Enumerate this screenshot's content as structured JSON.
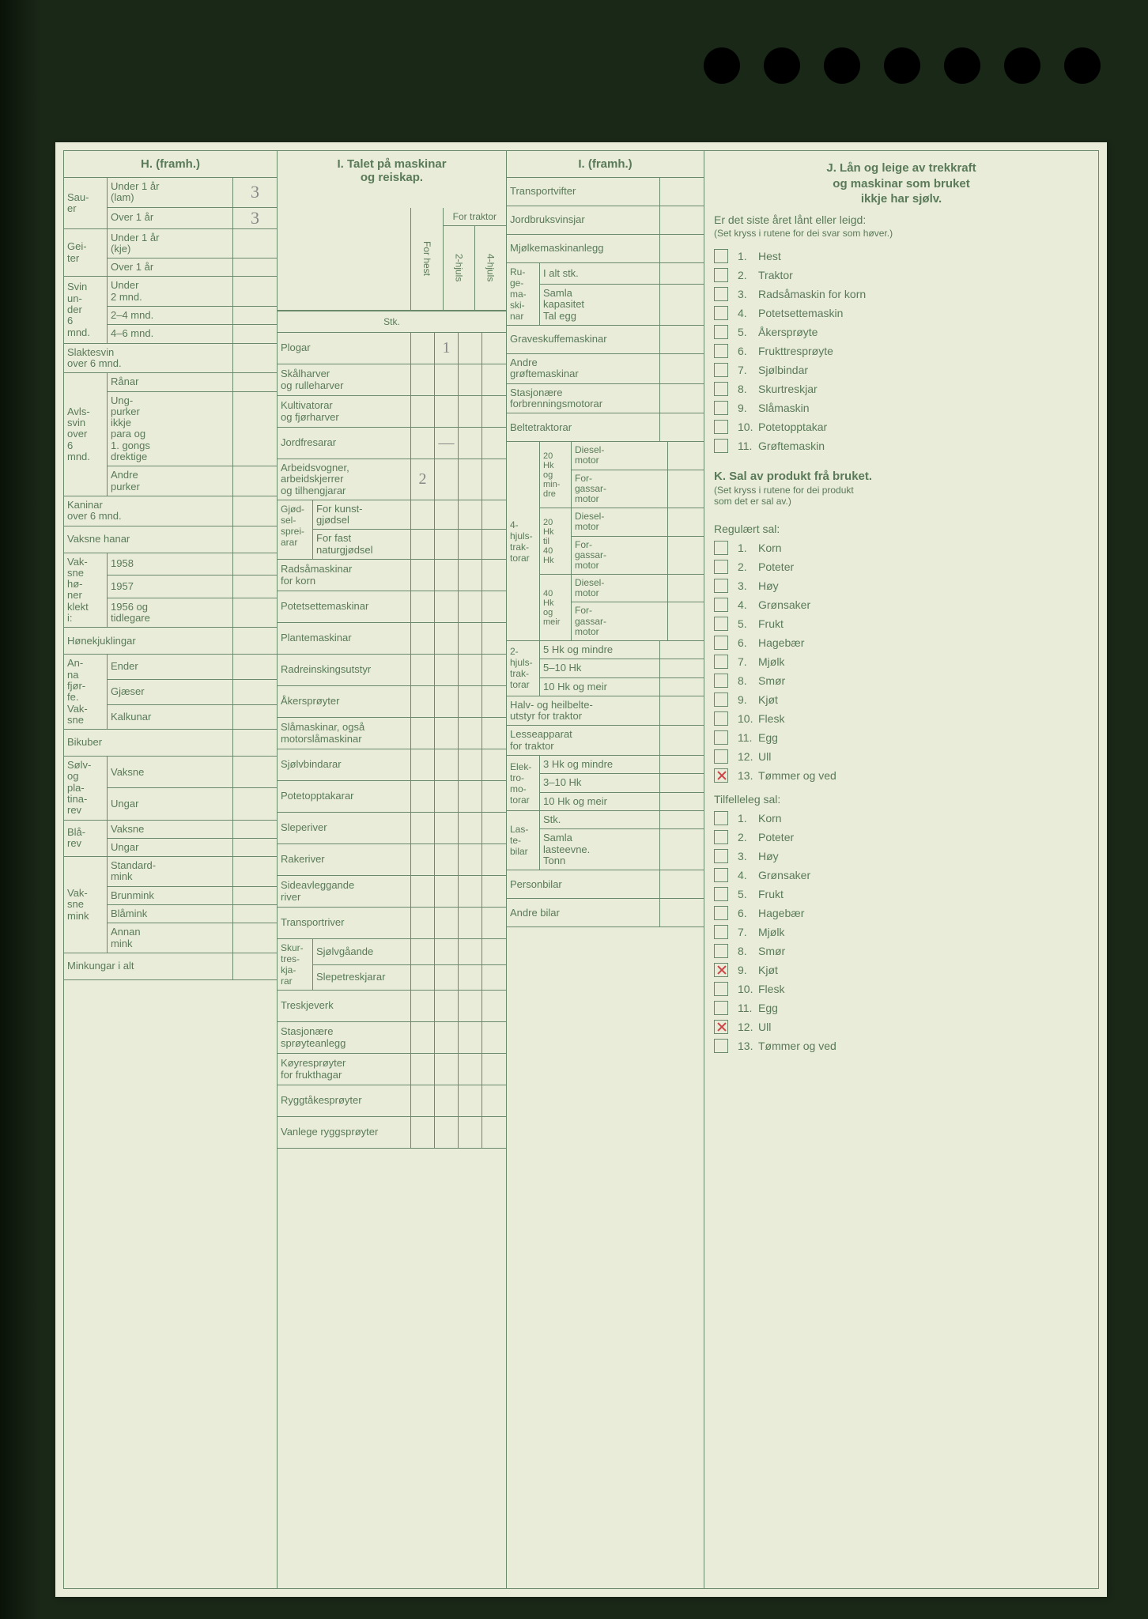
{
  "page_bg": "#e8ecd8",
  "line_color": "#6b8a6b",
  "text_color": "#5a7a5a",
  "pencil_color": "#888888",
  "mark_color": "#cc4444",
  "sectionH": {
    "title": "H. (framh.)",
    "groups": [
      {
        "side": "Sau-\ner",
        "rows": [
          {
            "lbl": "Under 1 år\n(lam)",
            "val": "3"
          },
          {
            "lbl": "Over 1 år",
            "val": "3"
          }
        ]
      },
      {
        "side": "Gei-\nter",
        "rows": [
          {
            "lbl": "Under 1 år\n(kje)",
            "val": ""
          },
          {
            "lbl": "Over 1 år",
            "val": ""
          }
        ]
      },
      {
        "side": "Svin\nun-\nder\n6\nmnd.",
        "rows": [
          {
            "lbl": "Under\n2 mnd.",
            "val": ""
          },
          {
            "lbl": "2–4 mnd.",
            "val": ""
          },
          {
            "lbl": "4–6 mnd.",
            "val": ""
          }
        ]
      }
    ],
    "full_rows1": [
      {
        "lbl": "Slaktesvin\nover 6 mnd.",
        "val": ""
      }
    ],
    "avls": {
      "side": "Avls-\nsvin\nover\n6\nmnd.",
      "rows": [
        {
          "lbl": "Rånar",
          "val": ""
        },
        {
          "lbl": "Ung-\npurker\nikkje\npara og\n1. gongs\ndrektige",
          "val": ""
        },
        {
          "lbl": "Andre\npurker",
          "val": ""
        }
      ]
    },
    "full_rows2": [
      {
        "lbl": "Kaninar\nover 6 mnd.",
        "val": ""
      },
      {
        "lbl": "Vaksne hanar",
        "val": ""
      }
    ],
    "honer": {
      "side": "Vak-\nsne\nhø-\nner\nklekt\ni:",
      "rows": [
        {
          "lbl": "1958",
          "val": ""
        },
        {
          "lbl": "1957",
          "val": ""
        },
        {
          "lbl": "1956 og\ntidlegare",
          "val": ""
        }
      ]
    },
    "full_rows3": [
      {
        "lbl": "Hønekjuklingar",
        "val": ""
      }
    ],
    "fjorfe": {
      "side": "An-\nna\nfjør-\nfe.\nVak-\nsne",
      "rows": [
        {
          "lbl": "Ender",
          "val": ""
        },
        {
          "lbl": "Gjæser",
          "val": ""
        },
        {
          "lbl": "Kalkunar",
          "val": ""
        }
      ]
    },
    "full_rows4": [
      {
        "lbl": "Bikuber",
        "val": ""
      }
    ],
    "rev": {
      "side": "Sølv-\nog\npla-\ntina-\nrev",
      "rows": [
        {
          "lbl": "Vaksne",
          "val": ""
        },
        {
          "lbl": "Ungar",
          "val": ""
        }
      ]
    },
    "blarev": {
      "side": "Blå-\nrev",
      "rows": [
        {
          "lbl": "Vaksne",
          "val": ""
        },
        {
          "lbl": "Ungar",
          "val": ""
        }
      ]
    },
    "mink": {
      "side": "Vak-\nsne\nmink",
      "rows": [
        {
          "lbl": "Standard-\nmink",
          "val": ""
        },
        {
          "lbl": "Brunmink",
          "val": ""
        },
        {
          "lbl": "Blåmink",
          "val": ""
        },
        {
          "lbl": "Annan\nmink",
          "val": ""
        }
      ]
    },
    "full_rows5": [
      {
        "lbl": "Minkungar i alt",
        "val": ""
      }
    ]
  },
  "sectionI1": {
    "title": "I. Talet på maskinar\nog reiskap.",
    "col_hest": "For hest",
    "traktor_hdr": "For\ntraktor",
    "col_2h": "2-hjuls",
    "col_4h": "4-hjuls",
    "stk": "Stk.",
    "rows": [
      {
        "lbl": "Plogar",
        "v": [
          "",
          "1",
          "",
          ""
        ]
      },
      {
        "lbl": "Skålharver\nog rulleharver",
        "v": [
          "",
          "",
          "",
          ""
        ]
      },
      {
        "lbl": "Kultivatorar\nog fjørharver",
        "v": [
          "",
          "",
          "",
          ""
        ]
      },
      {
        "lbl": "Jordfresarar",
        "v": [
          "",
          "—",
          "",
          ""
        ]
      },
      {
        "lbl": "Arbeidsvogner,\narbeidskjerrer\nog tilhengjarar",
        "v": [
          "2",
          "",
          "",
          ""
        ]
      }
    ],
    "gjod": {
      "side": "Gjød-\nsel-\nsprei-\narar",
      "rows": [
        {
          "lbl": "For kunst-\ngjødsel"
        },
        {
          "lbl": "For fast\nnaturgjødsel"
        }
      ]
    },
    "rows2": [
      {
        "lbl": "Radsåmaskinar\nfor korn"
      },
      {
        "lbl": "Potetsettemaskinar"
      },
      {
        "lbl": "Plantemaskinar"
      },
      {
        "lbl": "Radreinskingsutstyr"
      },
      {
        "lbl": "Åkersprøyter"
      },
      {
        "lbl": "Slåmaskinar, også\nmotorslåmaskinar"
      },
      {
        "lbl": "Sjølvbindarar"
      },
      {
        "lbl": "Potetopptakarar"
      },
      {
        "lbl": "Sleperiver"
      },
      {
        "lbl": "Rakeriver"
      },
      {
        "lbl": "Sideavleggande\nriver"
      },
      {
        "lbl": "Transportriver"
      }
    ],
    "skur": {
      "side": "Skur-\ntres-\nkja-\nrar",
      "rows": [
        {
          "lbl": "Sjølvgåande"
        },
        {
          "lbl": "Slepetreskjarar"
        }
      ]
    },
    "rows3": [
      {
        "lbl": "Treskjeverk"
      },
      {
        "lbl": "Stasjonære\nsprøyteanlegg"
      },
      {
        "lbl": "Køyresprøyter\nfor frukthagar"
      },
      {
        "lbl": "Ryggtåkesprøyter"
      },
      {
        "lbl": "Vanlege ryggsprøyter"
      }
    ]
  },
  "sectionI2": {
    "title": "I. (framh.)",
    "top": [
      {
        "lbl": "Transportvifter"
      },
      {
        "lbl": "Jordbruksvinsjar"
      },
      {
        "lbl": "Mjølkemaskinanlegg"
      }
    ],
    "ruge": {
      "side": "Ru-\nge-\nma-\nski-\nnar",
      "rows": [
        {
          "lbl": "I alt stk."
        },
        {
          "lbl": "Samla\nkapasitet\nTal egg"
        }
      ]
    },
    "mid": [
      {
        "lbl": "Graveskuffemaskinar"
      },
      {
        "lbl": "Andre\ngrøftemaskinar"
      },
      {
        "lbl": "Stasjonære\nforbrenningsmotorar"
      },
      {
        "lbl": "Beltetraktorar"
      }
    ],
    "hjul4": {
      "side": "4-\nhjuls-\ntrak-\ntorar",
      "groups": [
        {
          "b": "20\nHk\nog\nmin-\ndre",
          "rows": [
            {
              "lbl": "Diesel-\nmotor"
            },
            {
              "lbl": "For-\ngassar-\nmotor"
            }
          ]
        },
        {
          "b": "20\nHk\ntil\n40\nHk",
          "rows": [
            {
              "lbl": "Diesel-\nmotor"
            },
            {
              "lbl": "For-\ngassar-\nmotor"
            }
          ]
        },
        {
          "b": "40\nHk\nog\nmeir",
          "rows": [
            {
              "lbl": "Diesel-\nmotor"
            },
            {
              "lbl": "For-\ngassar-\nmotor"
            }
          ]
        }
      ]
    },
    "hjul2": {
      "side": "2-\nhjuls-\ntrak-\ntorar",
      "rows": [
        {
          "lbl": "5 Hk og mindre"
        },
        {
          "lbl": "5–10 Hk"
        },
        {
          "lbl": "10 Hk og meir"
        }
      ]
    },
    "mid2": [
      {
        "lbl": "Halv- og heilbelte-\nutstyr for traktor"
      },
      {
        "lbl": "Lesseapparat\nfor traktor"
      }
    ],
    "elektro": {
      "side": "Elek-\ntro-\nmo-\ntorar",
      "rows": [
        {
          "lbl": "3 Hk og mindre"
        },
        {
          "lbl": "3–10 Hk"
        },
        {
          "lbl": "10 Hk og meir"
        }
      ]
    },
    "laste": {
      "side": "Las-\nte-\nbilar",
      "rows": [
        {
          "lbl": "Stk."
        },
        {
          "lbl": "Samla\nlasteevne.\nTonn"
        }
      ]
    },
    "bot": [
      {
        "lbl": "Personbilar"
      },
      {
        "lbl": "Andre bilar"
      }
    ]
  },
  "sectionJ": {
    "title": "J. Lån og leige av trekkraft\nog maskinar som bruket\nikkje har sjølv.",
    "sub": "Er det siste året lånt eller leigd:",
    "note": "(Set kryss i rutene for dei svar som høver.)",
    "items": [
      {
        "n": "1.",
        "lbl": "Hest",
        "x": false
      },
      {
        "n": "2.",
        "lbl": "Traktor",
        "x": false
      },
      {
        "n": "3.",
        "lbl": "Radsåmaskin for korn",
        "x": false
      },
      {
        "n": "4.",
        "lbl": "Potetsettemaskin",
        "x": false
      },
      {
        "n": "5.",
        "lbl": "Åkersprøyte",
        "x": false
      },
      {
        "n": "6.",
        "lbl": "Frukttresprøyte",
        "x": false
      },
      {
        "n": "7.",
        "lbl": "Sjølbindar",
        "x": false
      },
      {
        "n": "8.",
        "lbl": "Skurtreskjar",
        "x": false
      },
      {
        "n": "9.",
        "lbl": "Slåmaskin",
        "x": false
      },
      {
        "n": "10.",
        "lbl": "Potetopptakar",
        "x": false
      },
      {
        "n": "11.",
        "lbl": "Grøftemaskin",
        "x": false
      }
    ]
  },
  "sectionK": {
    "title": "K. Sal av produkt frå bruket.",
    "note": "(Set kryss i rutene for dei produkt\nsom det er sal av.)",
    "reg_hdr": "Regulært sal:",
    "reg": [
      {
        "n": "1.",
        "lbl": "Korn",
        "x": false
      },
      {
        "n": "2.",
        "lbl": "Poteter",
        "x": false
      },
      {
        "n": "3.",
        "lbl": "Høy",
        "x": false
      },
      {
        "n": "4.",
        "lbl": "Grønsaker",
        "x": false
      },
      {
        "n": "5.",
        "lbl": "Frukt",
        "x": false
      },
      {
        "n": "6.",
        "lbl": "Hagebær",
        "x": false
      },
      {
        "n": "7.",
        "lbl": "Mjølk",
        "x": false
      },
      {
        "n": "8.",
        "lbl": "Smør",
        "x": false
      },
      {
        "n": "9.",
        "lbl": "Kjøt",
        "x": false
      },
      {
        "n": "10.",
        "lbl": "Flesk",
        "x": false
      },
      {
        "n": "11.",
        "lbl": "Egg",
        "x": false
      },
      {
        "n": "12.",
        "lbl": "Ull",
        "x": false
      },
      {
        "n": "13.",
        "lbl": "Tømmer og ved",
        "x": true
      }
    ],
    "til_hdr": "Tilfelleleg sal:",
    "til": [
      {
        "n": "1.",
        "lbl": "Korn",
        "x": false
      },
      {
        "n": "2.",
        "lbl": "Poteter",
        "x": false
      },
      {
        "n": "3.",
        "lbl": "Høy",
        "x": false
      },
      {
        "n": "4.",
        "lbl": "Grønsaker",
        "x": false
      },
      {
        "n": "5.",
        "lbl": "Frukt",
        "x": false
      },
      {
        "n": "6.",
        "lbl": "Hagebær",
        "x": false
      },
      {
        "n": "7.",
        "lbl": "Mjølk",
        "x": false
      },
      {
        "n": "8.",
        "lbl": "Smør",
        "x": false
      },
      {
        "n": "9.",
        "lbl": "Kjøt",
        "x": true
      },
      {
        "n": "10.",
        "lbl": "Flesk",
        "x": false
      },
      {
        "n": "11.",
        "lbl": "Egg",
        "x": false
      },
      {
        "n": "12.",
        "lbl": "Ull",
        "x": true
      },
      {
        "n": "13.",
        "lbl": "Tømmer og ved",
        "x": false
      }
    ]
  }
}
